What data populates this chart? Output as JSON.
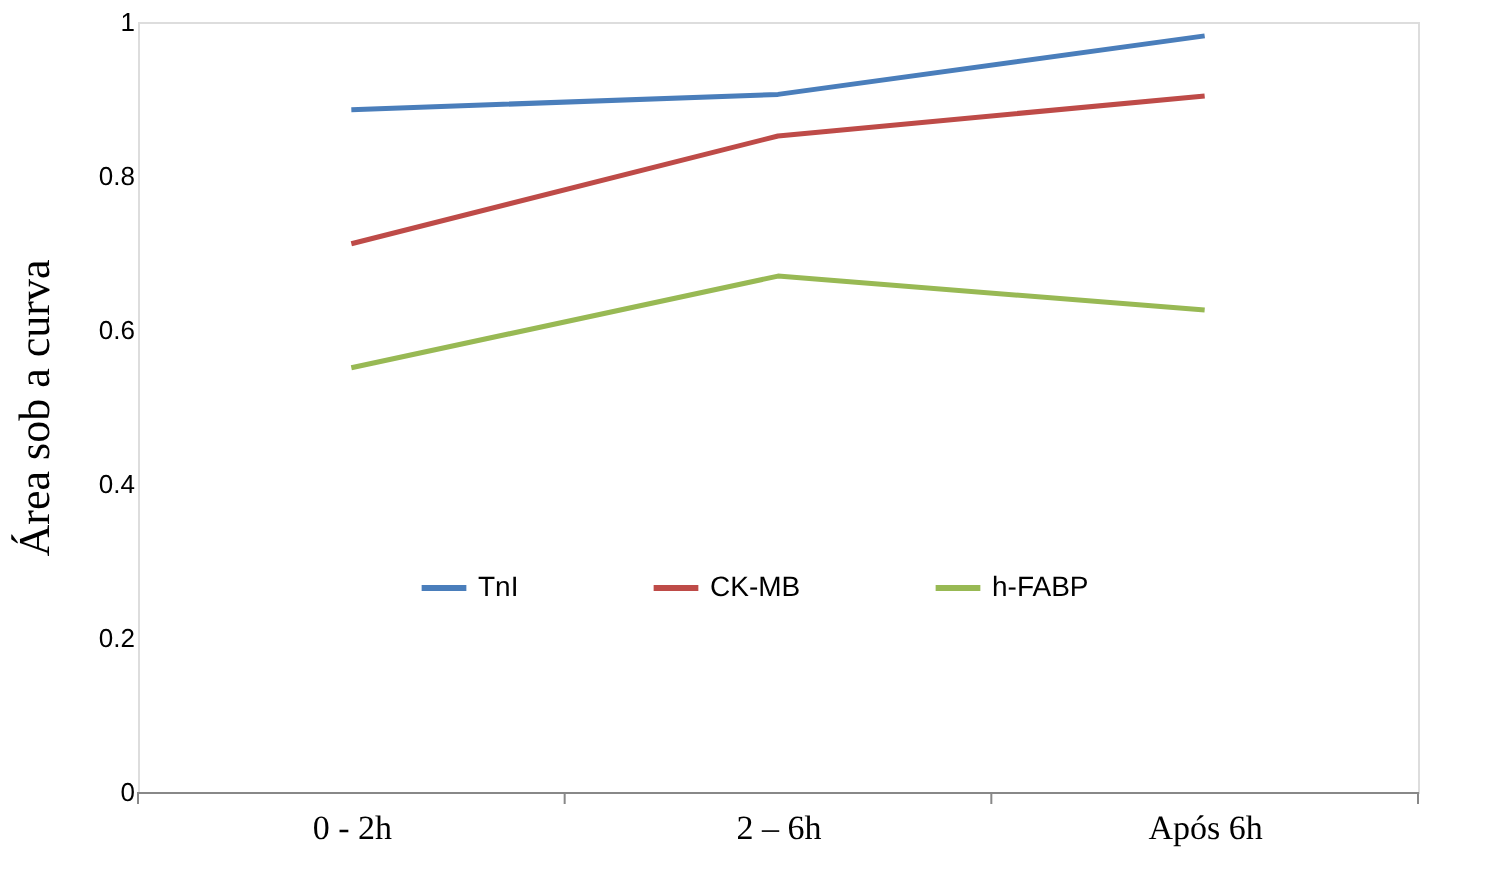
{
  "chart_data": {
    "type": "line",
    "ylabel": "Área sob a curva",
    "categories": [
      "0 - 2h",
      "2 – 6h",
      "Após 6h"
    ],
    "series": [
      {
        "name": "TnI",
        "color": "#4a7ebb",
        "values": [
          0.886,
          0.906,
          0.982
        ]
      },
      {
        "name": "CK-MB",
        "color": "#be4b48",
        "values": [
          0.712,
          0.852,
          0.904
        ]
      },
      {
        "name": "h-FABP",
        "color": "#98b954",
        "values": [
          0.551,
          0.67,
          0.626
        ]
      }
    ],
    "ylim": [
      0,
      1
    ],
    "yticks": [
      0,
      0.2,
      0.4,
      0.6,
      0.8,
      1
    ],
    "grid": false,
    "legend": "bottom",
    "line_style": "solid"
  }
}
